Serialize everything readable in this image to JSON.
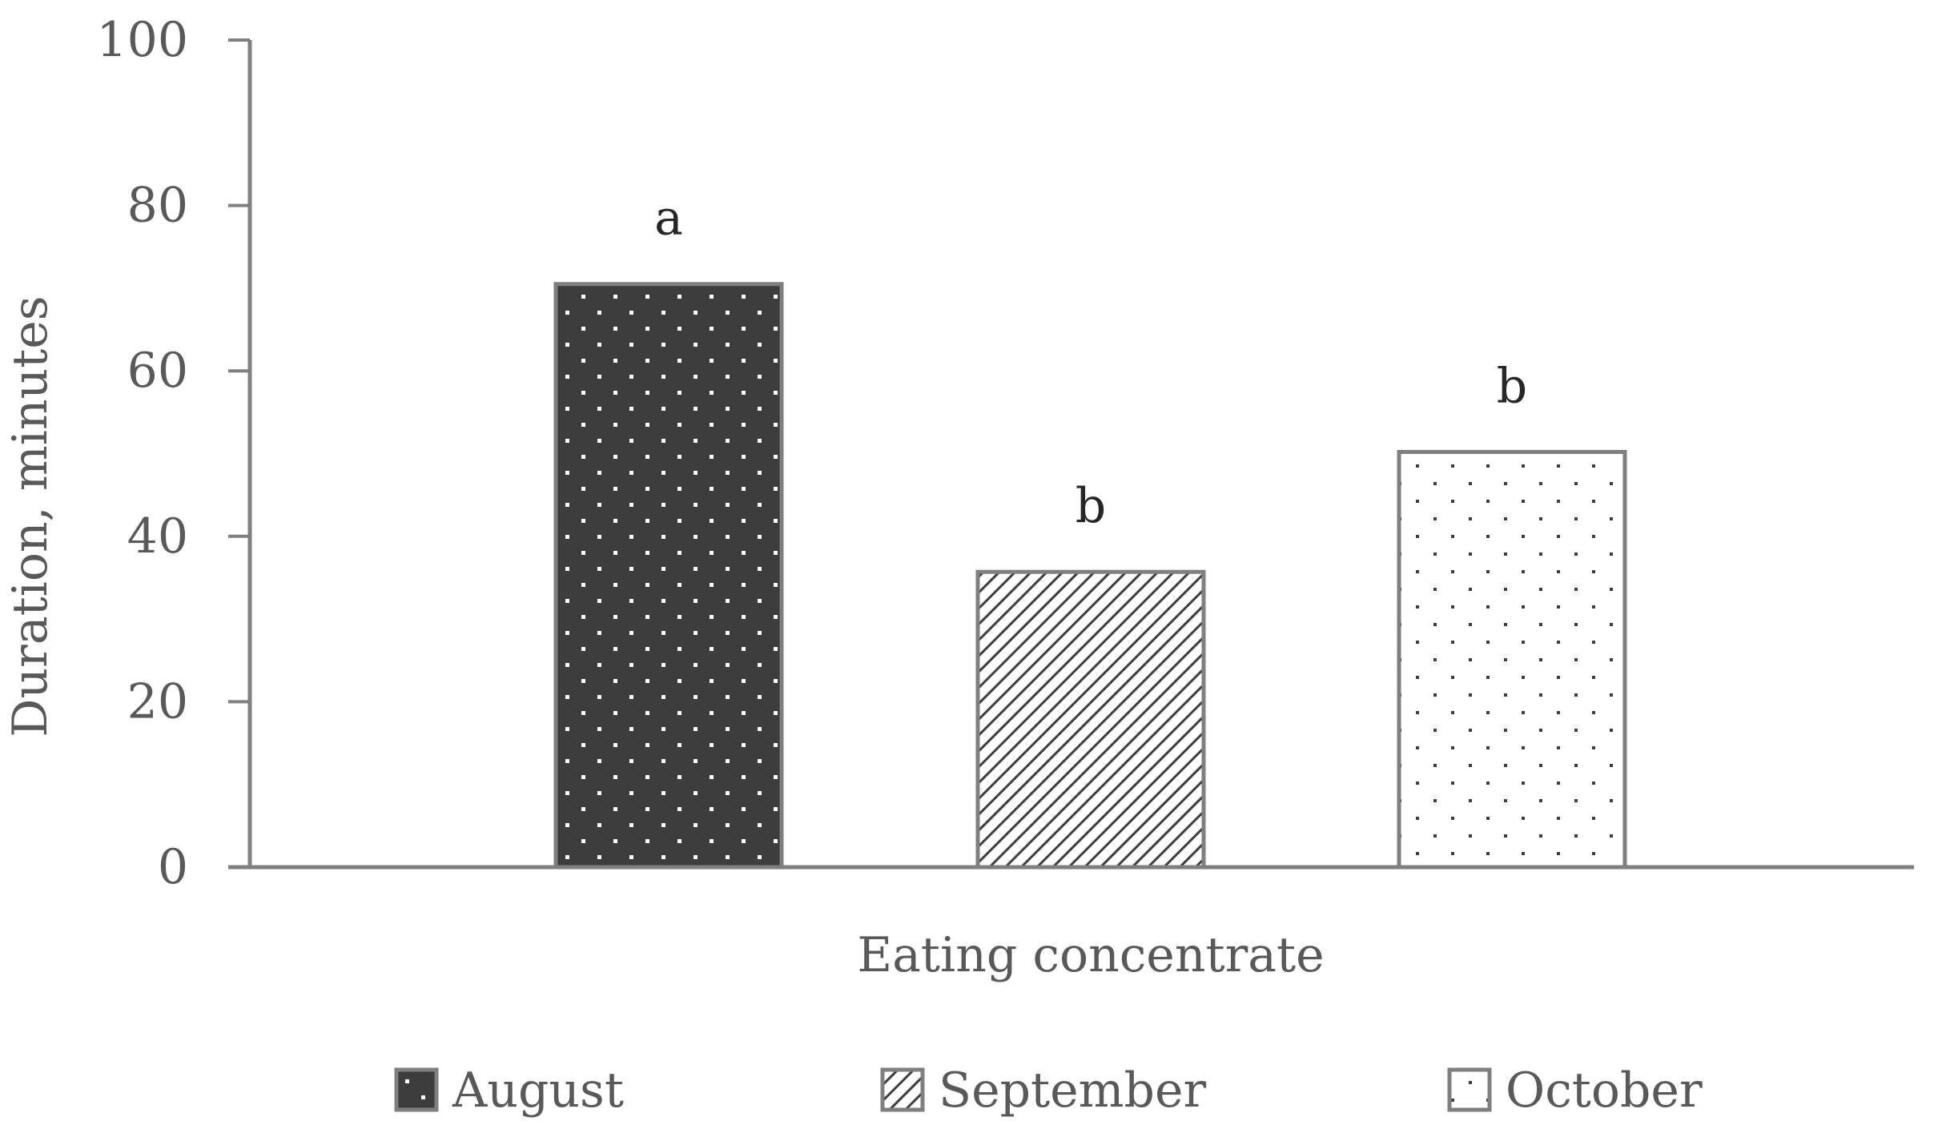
{
  "chart_data": {
    "type": "bar",
    "title": "",
    "categories": [
      "Eating concentrate"
    ],
    "xlabel": "Eating concentrate",
    "ylabel": "Duration, minutes",
    "ylim": [
      0,
      100
    ],
    "yticks": [
      "0",
      "20",
      "40",
      "60",
      "80",
      "100"
    ],
    "grid": false,
    "legend_position": "bottom",
    "series": [
      {
        "name": "August",
        "values": [
          70.5
        ],
        "annotation": "a",
        "pattern": "dark-with-white-dots",
        "fill": "#3d3d3d"
      },
      {
        "name": "September",
        "values": [
          35.7
        ],
        "annotation": "b",
        "pattern": "diagonal-hatch",
        "fill": "#ffffff"
      },
      {
        "name": "October",
        "values": [
          50.2
        ],
        "annotation": "b",
        "pattern": "sparse-dots",
        "fill": "#ffffff"
      }
    ],
    "colors": {
      "axis": "#7f7f7f",
      "text": "#595959",
      "bar_outline": "#7f7f7f",
      "annotation": "#262626"
    }
  }
}
